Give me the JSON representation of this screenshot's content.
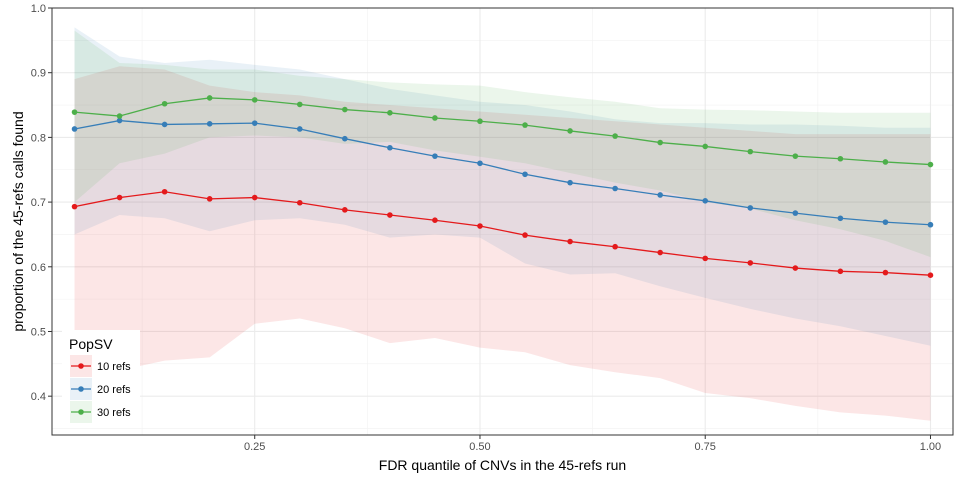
{
  "chart_data": {
    "type": "line",
    "title": "",
    "xlabel": "FDR quantile of CNVs in the 45-refs run",
    "ylabel": "proportion of the 45-refs calls found",
    "xlim": [
      0.025,
      1.025
    ],
    "ylim": [
      0.34,
      1.0
    ],
    "x_ticks": [
      0.25,
      0.5,
      0.75,
      1.0
    ],
    "x_tick_labels": [
      "0.25",
      "0.50",
      "0.75",
      "1.00"
    ],
    "y_ticks": [
      0.4,
      0.5,
      0.6,
      0.7,
      0.8,
      0.9,
      1.0
    ],
    "y_tick_labels": [
      "0.4",
      "0.5",
      "0.6",
      "0.7",
      "0.8",
      "0.9",
      "1.0"
    ],
    "grid": true,
    "legend": {
      "title": "PopSV",
      "position": "bottom-left"
    },
    "x": [
      0.05,
      0.1,
      0.15,
      0.2,
      0.25,
      0.3,
      0.35,
      0.4,
      0.45,
      0.5,
      0.55,
      0.6,
      0.65,
      0.7,
      0.75,
      0.8,
      0.85,
      0.9,
      0.95,
      1.0
    ],
    "series": [
      {
        "name": "10 refs",
        "color": "#e41a1c",
        "values": [
          0.693,
          0.707,
          0.716,
          0.705,
          0.707,
          0.699,
          0.688,
          0.68,
          0.672,
          0.663,
          0.649,
          0.639,
          0.631,
          0.622,
          0.613,
          0.606,
          0.598,
          0.593,
          0.591,
          0.587
        ],
        "lower": [
          0.495,
          0.44,
          0.455,
          0.46,
          0.512,
          0.52,
          0.505,
          0.482,
          0.49,
          0.475,
          0.468,
          0.448,
          0.437,
          0.428,
          0.405,
          0.397,
          0.385,
          0.375,
          0.37,
          0.362
        ],
        "upper": [
          0.89,
          0.91,
          0.905,
          0.88,
          0.87,
          0.865,
          0.855,
          0.85,
          0.845,
          0.84,
          0.835,
          0.83,
          0.825,
          0.82,
          0.815,
          0.81,
          0.805,
          0.805,
          0.805,
          0.805
        ]
      },
      {
        "name": "20 refs",
        "color": "#377eb8",
        "values": [
          0.813,
          0.826,
          0.82,
          0.821,
          0.822,
          0.813,
          0.798,
          0.784,
          0.771,
          0.76,
          0.743,
          0.73,
          0.721,
          0.711,
          0.702,
          0.691,
          0.683,
          0.675,
          0.669,
          0.665
        ],
        "lower": [
          0.65,
          0.68,
          0.675,
          0.655,
          0.672,
          0.675,
          0.665,
          0.645,
          0.65,
          0.645,
          0.605,
          0.588,
          0.59,
          0.57,
          0.552,
          0.535,
          0.52,
          0.508,
          0.493,
          0.478
        ],
        "upper": [
          0.97,
          0.925,
          0.915,
          0.92,
          0.912,
          0.905,
          0.89,
          0.875,
          0.865,
          0.855,
          0.85,
          0.84,
          0.828,
          0.822,
          0.822,
          0.82,
          0.82,
          0.818,
          0.815,
          0.815
        ]
      },
      {
        "name": "30 refs",
        "color": "#4daf4a",
        "values": [
          0.839,
          0.833,
          0.852,
          0.861,
          0.858,
          0.851,
          0.843,
          0.838,
          0.83,
          0.825,
          0.819,
          0.81,
          0.802,
          0.792,
          0.786,
          0.778,
          0.771,
          0.767,
          0.762,
          0.758
        ],
        "lower": [
          0.7,
          0.76,
          0.775,
          0.8,
          0.803,
          0.8,
          0.79,
          0.793,
          0.78,
          0.77,
          0.76,
          0.745,
          0.73,
          0.718,
          0.7,
          0.69,
          0.672,
          0.658,
          0.64,
          0.615
        ],
        "upper": [
          0.965,
          0.915,
          0.912,
          0.905,
          0.905,
          0.895,
          0.89,
          0.885,
          0.882,
          0.88,
          0.87,
          0.862,
          0.855,
          0.845,
          0.843,
          0.842,
          0.84,
          0.838,
          0.838,
          0.838
        ]
      }
    ]
  }
}
